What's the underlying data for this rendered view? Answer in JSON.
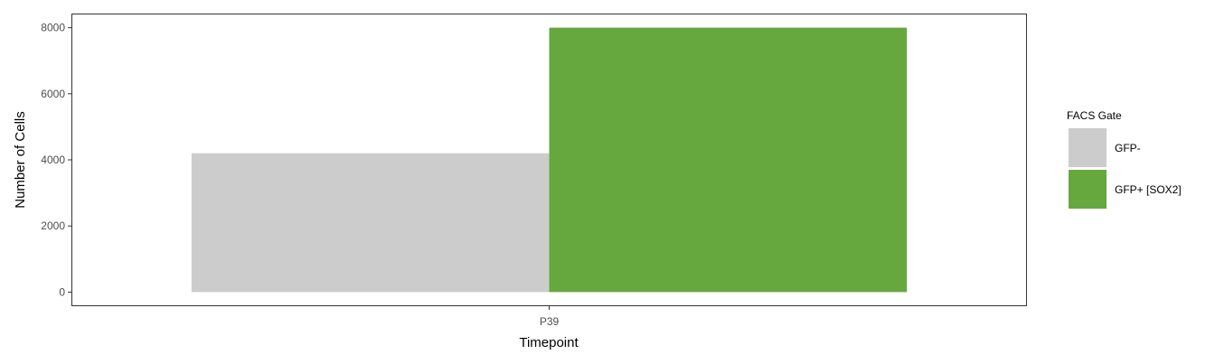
{
  "chart_data": {
    "type": "bar",
    "categories": [
      "P39"
    ],
    "series": [
      {
        "name": "GFP-",
        "values": [
          4200
        ],
        "color": "#cccccc"
      },
      {
        "name": "GFP+ [SOX2]",
        "values": [
          8000
        ],
        "color": "#66a83d"
      }
    ],
    "xlabel": "Timepoint",
    "ylabel": "Number of Cells",
    "ylim": [
      -400,
      8400
    ],
    "yticks": [
      0,
      2000,
      4000,
      6000,
      8000
    ],
    "grid": false,
    "legend": {
      "title": "FACS Gate",
      "placement": "right"
    }
  }
}
